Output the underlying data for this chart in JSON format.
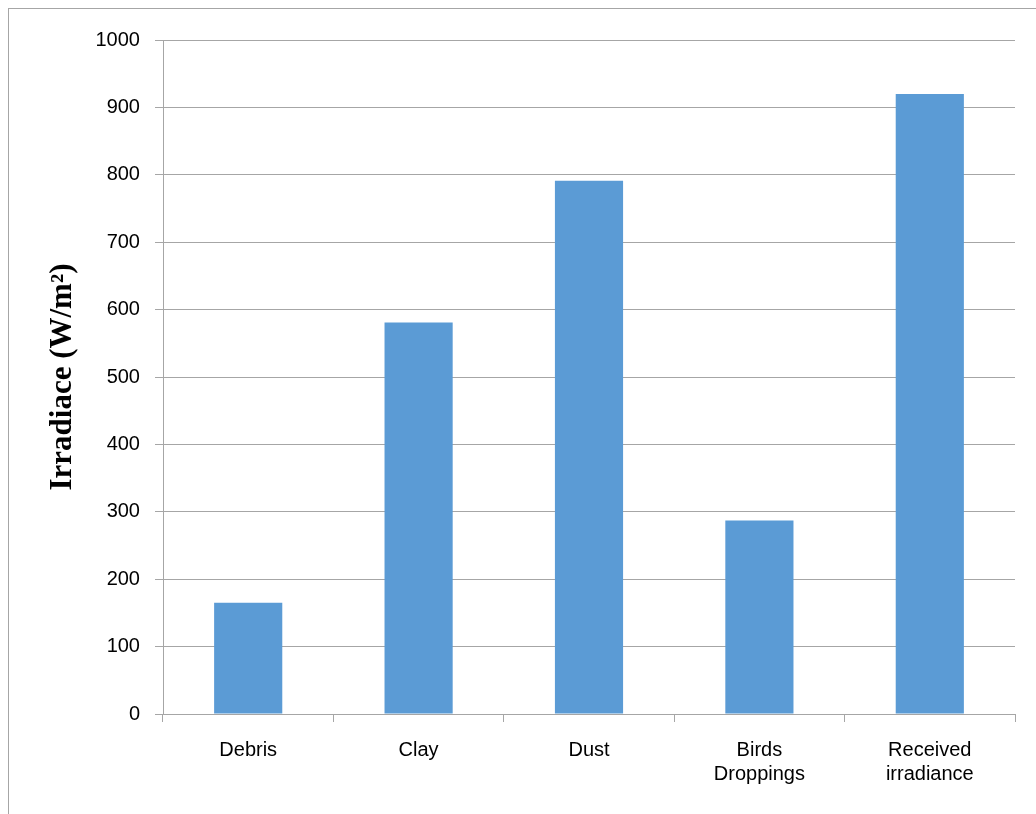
{
  "chart_data": {
    "type": "bar",
    "ylabel": "Irradiace (W/m²)",
    "categories": [
      "Debris",
      "Clay",
      "Dust",
      "Birds Droppings",
      "Received irradiance"
    ],
    "values": [
      165,
      581,
      791,
      287,
      920
    ],
    "color": "#5b9bd5",
    "ylim": [
      0,
      1000
    ],
    "yticks": [
      0,
      100,
      200,
      300,
      400,
      500,
      600,
      700,
      800,
      900,
      1000
    ],
    "grid": "y"
  }
}
